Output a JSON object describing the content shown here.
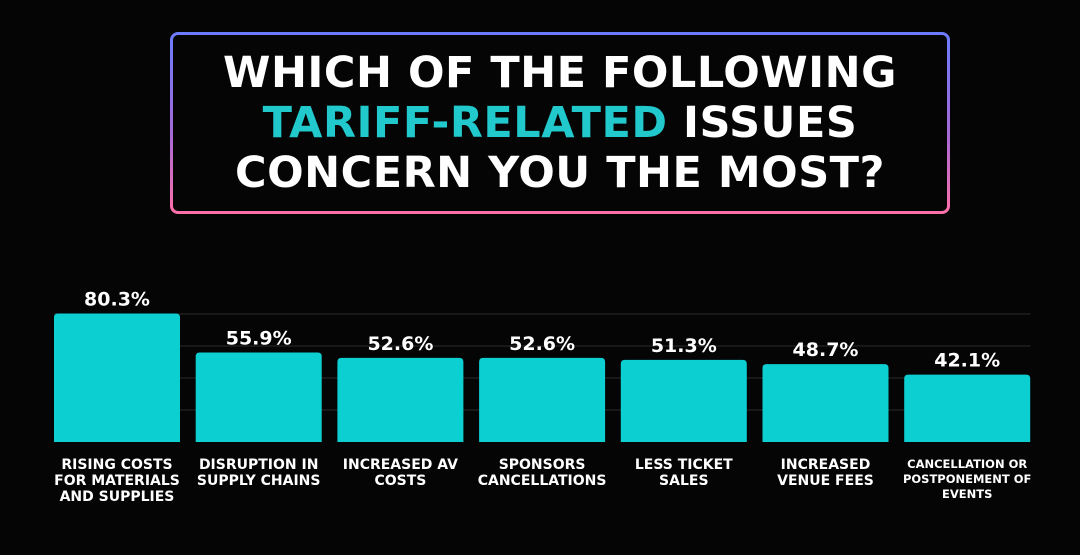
{
  "title": {
    "line1": "WHICH OF THE FOLLOWING",
    "line2_highlight": "TARIFF-RELATED",
    "line2_rest": " ISSUES",
    "line3": "CONCERN YOU THE MOST?",
    "highlight_color": "#21c8cc"
  },
  "chart_data": {
    "type": "bar",
    "title": "WHICH OF THE FOLLOWING TARIFF-RELATED ISSUES CONCERN YOU THE MOST?",
    "categories": [
      "RISING COSTS FOR MATERIALS AND SUPPLIES",
      "DISRUPTION IN SUPPLY CHAINS",
      "INCREASED AV COSTS",
      "SPONSORS CANCELLATIONS",
      "LESS TICKET SALES",
      "INCREASED VENUE FEES",
      "CANCELLATION OR POSTPONEMENT OF EVENTS"
    ],
    "values": [
      80.3,
      55.9,
      52.6,
      52.6,
      51.3,
      48.7,
      42.1
    ],
    "value_labels": [
      "80.3%",
      "55.9%",
      "52.6%",
      "52.6%",
      "51.3%",
      "48.7%",
      "42.1%"
    ],
    "unit": "%",
    "xlabel": "",
    "ylabel": "",
    "ylim": [
      0,
      100
    ],
    "grid": true,
    "bar_color": "#0ccfd2"
  }
}
